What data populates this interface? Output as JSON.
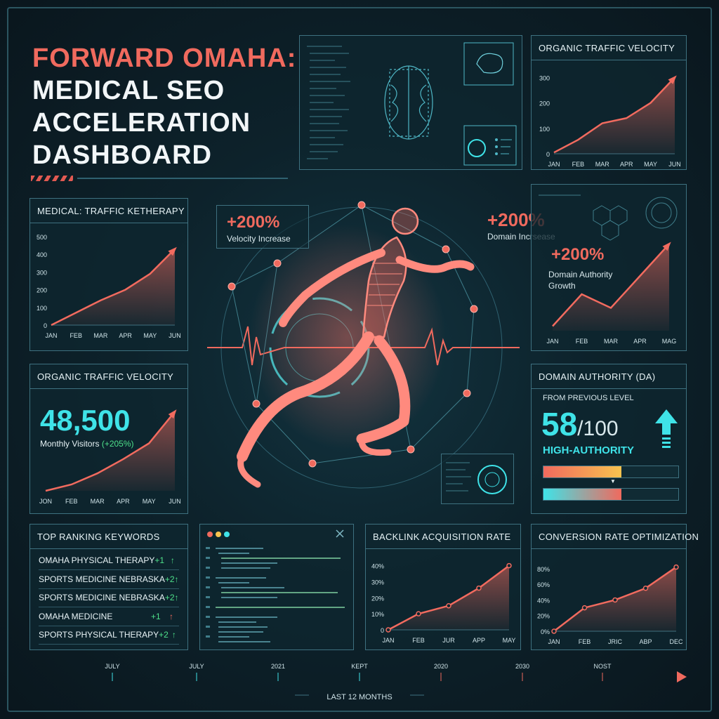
{
  "title": {
    "line1": "FORWARD OMAHA:",
    "line2": "MEDICAL SEO",
    "line3": "ACCELERATION",
    "line4": "DASHBOARD"
  },
  "colors": {
    "accent_red": "#f06a5e",
    "accent_cyan": "#3fe3e8",
    "positive_green": "#4ee08a",
    "panel_border": "#3e7180"
  },
  "callouts": [
    {
      "value": "+200%",
      "label": "Velocity Increase"
    },
    {
      "value": "+200%",
      "label": "Domain Incrsease"
    },
    {
      "value": "+200%",
      "label": "Domain Authority Growth"
    }
  ],
  "velocity_card": {
    "title": "ORGANIC TRAFFIC VELOCITY",
    "value": "48,500",
    "label": "Monthly Visitors",
    "delta": "(+205%)"
  },
  "da_card": {
    "title": "DOMAIN AUTHORITY (DA)",
    "caption": "FROM PREVIOUS LEVEL",
    "value": "58",
    "denominator": "/100",
    "tier": "HIGH-AUTHORITY",
    "bar1_fraction": 0.58,
    "bar2_fraction": 0.58
  },
  "keywords": {
    "title": "TOP RANKING KEYWORDS",
    "rows": [
      {
        "name": "OMAHA PHYSICAL THERAPY",
        "delta": "+1",
        "dir": "up"
      },
      {
        "name": "SPORTS MEDICINE NEBRASKA",
        "delta": "+2",
        "dir": "up"
      },
      {
        "name": "SPORTS MEDICINE NEBRASKA",
        "delta": "+2",
        "dir": "up"
      },
      {
        "name": "OMAHA MEDICINE",
        "delta": "+1",
        "dir": "up-red"
      },
      {
        "name": "SPORTS PHYSICAL THERAPY",
        "delta": "+2",
        "dir": "up"
      }
    ]
  },
  "timeline": {
    "ticks": [
      "JULY",
      "JULY",
      "2021",
      "KEPT",
      "2020",
      "2030",
      "NOST"
    ],
    "caption": "LAST 12 MONTHS"
  },
  "chart_data": [
    {
      "id": "organic-velocity-top",
      "type": "area",
      "title": "ORGANIC TRAFFIC VELOCITY",
      "categories": [
        "JAN",
        "FEB",
        "MAR",
        "APR",
        "MAY",
        "JUN"
      ],
      "values": [
        5,
        55,
        120,
        140,
        200,
        300
      ],
      "yticks": [
        "0",
        "100",
        "200",
        "300"
      ],
      "ylim": [
        0,
        320
      ]
    },
    {
      "id": "traffic-ketherapy",
      "type": "area",
      "title": "MEDICAL: TRAFFIC KETHERAPY",
      "categories": [
        "JAN",
        "FEB",
        "MAR",
        "APR",
        "MAY",
        "JUN"
      ],
      "values": [
        0,
        70,
        140,
        200,
        290,
        430
      ],
      "yticks": [
        "0",
        "100",
        "200",
        "300",
        "400",
        "500"
      ],
      "ylim": [
        0,
        500
      ]
    },
    {
      "id": "domain-growth",
      "type": "line",
      "categories": [
        "JAN",
        "FEB",
        "MAR",
        "APR",
        "MAG"
      ],
      "values": [
        5,
        40,
        25,
        60,
        95
      ],
      "ylim": [
        0,
        100
      ]
    },
    {
      "id": "velocity-mini",
      "type": "area",
      "categories": [
        "JON",
        "FEB",
        "MAR",
        "APR",
        "MAY",
        "JUN"
      ],
      "values": [
        0,
        8,
        22,
        40,
        60,
        100
      ],
      "ylim": [
        0,
        110
      ]
    },
    {
      "id": "backlink",
      "type": "area",
      "title": "BACKLINK ACQUISITION RATE",
      "categories": [
        "JAN",
        "FEB",
        "JUR",
        "APP",
        "MAY"
      ],
      "values": [
        0,
        10,
        15,
        26,
        40
      ],
      "yticks": [
        "0",
        "10%",
        "20%",
        "30%",
        "40%"
      ],
      "ylim": [
        0,
        42
      ]
    },
    {
      "id": "conversion",
      "type": "area",
      "title": "CONVERSION RATE OPTIMIZATION",
      "categories": [
        "JAN",
        "FEB",
        "JRIC",
        "ABP",
        "DEC"
      ],
      "values": [
        0,
        30,
        40,
        55,
        82
      ],
      "yticks": [
        "0%",
        "20%",
        "40%",
        "60%",
        "80%"
      ],
      "ylim": [
        0,
        88
      ]
    }
  ]
}
